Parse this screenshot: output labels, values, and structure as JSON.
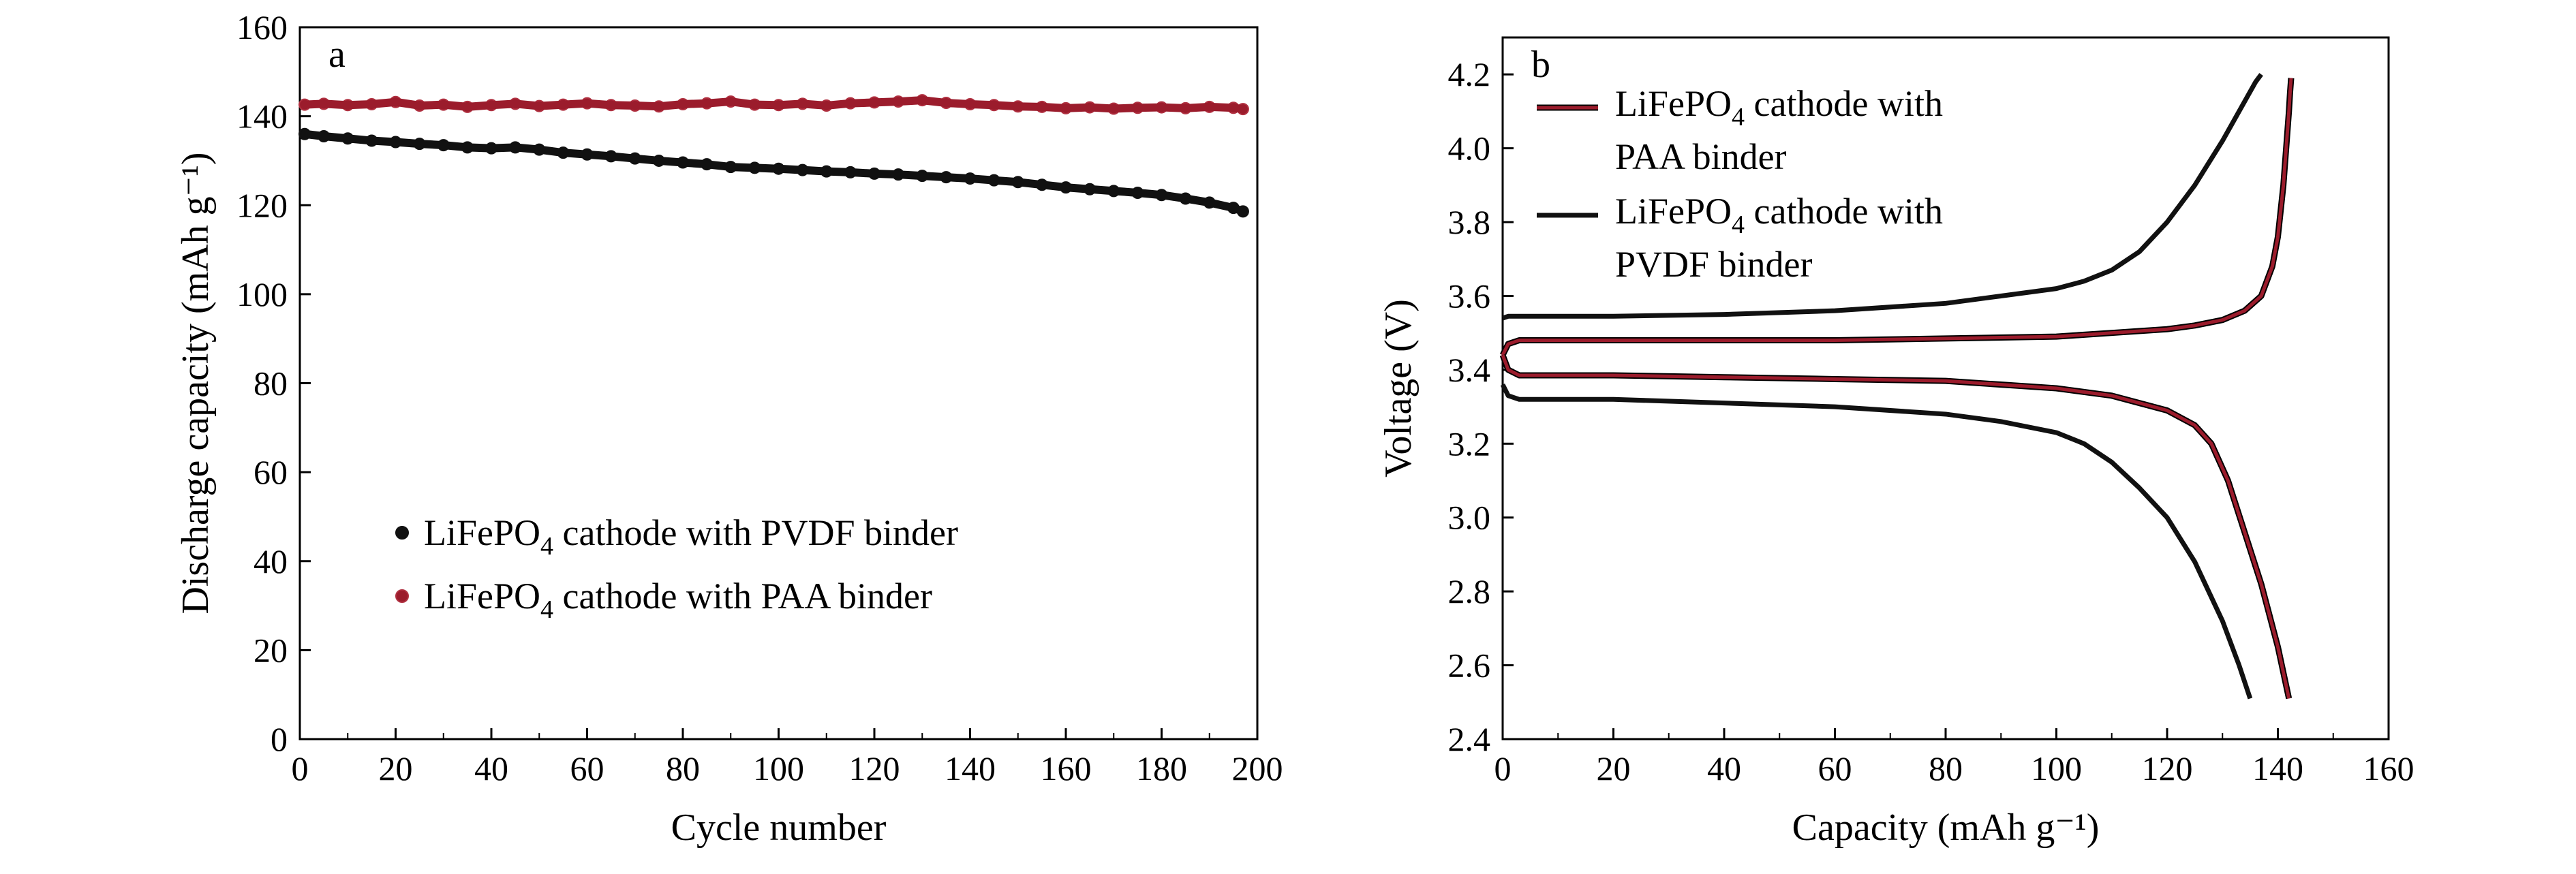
{
  "colors": {
    "pvdf": "#111111",
    "paa": "#9b1c2c",
    "paa_marker_edge": "#b03040"
  },
  "chart_data": [
    {
      "type": "scatter",
      "panel_label": "a",
      "xlabel": "Cycle number",
      "ylabel": "Discharge capacity (mAh g⁻¹)",
      "xlim": [
        0,
        200
      ],
      "ylim": [
        0,
        160
      ],
      "xticks": [
        0,
        20,
        40,
        60,
        80,
        100,
        120,
        140,
        160,
        180,
        200
      ],
      "yticks": [
        0,
        20,
        40,
        60,
        80,
        100,
        120,
        140,
        160
      ],
      "grid": false,
      "legend_position": "lower-left",
      "series": [
        {
          "name": "LiFePO₄ cathode with PVDF binder",
          "name_parts": [
            "LiFePO",
            "4",
            " cathode with PVDF binder"
          ],
          "color_key": "pvdf",
          "x": [
            1,
            5,
            10,
            15,
            20,
            25,
            30,
            35,
            40,
            45,
            50,
            55,
            60,
            65,
            70,
            75,
            80,
            85,
            90,
            95,
            100,
            105,
            110,
            115,
            120,
            125,
            130,
            135,
            140,
            145,
            150,
            155,
            160,
            165,
            170,
            175,
            180,
            185,
            190,
            195,
            197
          ],
          "y": [
            136,
            135.5,
            135,
            134.5,
            134.2,
            133.8,
            133.5,
            133,
            132.8,
            133,
            132.5,
            131.8,
            131.4,
            131,
            130.5,
            130,
            129.6,
            129.2,
            128.6,
            128.4,
            128.2,
            127.9,
            127.6,
            127.4,
            127.1,
            126.9,
            126.6,
            126.3,
            126,
            125.6,
            125.2,
            124.6,
            124,
            123.6,
            123.2,
            122.8,
            122.3,
            121.5,
            120.6,
            119.4,
            118.6
          ]
        },
        {
          "name": "LiFePO₄ cathode with PAA binder",
          "name_parts": [
            "LiFePO",
            "4",
            " cathode with PAA binder"
          ],
          "color_key": "paa",
          "x": [
            1,
            5,
            10,
            15,
            20,
            25,
            30,
            35,
            40,
            45,
            50,
            55,
            60,
            65,
            70,
            75,
            80,
            85,
            90,
            95,
            100,
            105,
            110,
            115,
            120,
            125,
            130,
            135,
            140,
            145,
            150,
            155,
            160,
            165,
            170,
            175,
            180,
            185,
            190,
            195,
            197
          ],
          "y": [
            142.6,
            142.8,
            142.5,
            142.7,
            143.2,
            142.4,
            142.6,
            142.1,
            142.5,
            142.8,
            142.3,
            142.6,
            142.9,
            142.5,
            142.4,
            142.2,
            142.7,
            142.9,
            143.3,
            142.6,
            142.5,
            142.8,
            142.4,
            142.9,
            143.1,
            143.3,
            143.6,
            143.0,
            142.7,
            142.5,
            142.2,
            142.1,
            141.8,
            142.0,
            141.7,
            141.9,
            142.0,
            141.8,
            142.1,
            141.9,
            141.6
          ]
        }
      ]
    },
    {
      "type": "line",
      "panel_label": "b",
      "xlabel": "Capacity (mAh g⁻¹)",
      "ylabel": "Voltage (V)",
      "xlim": [
        0,
        160
      ],
      "ylim": [
        2.4,
        4.3
      ],
      "xticks": [
        0,
        20,
        40,
        60,
        80,
        100,
        120,
        140,
        160
      ],
      "yticks": [
        "2.4",
        "2.6",
        "2.8",
        "3.0",
        "3.2",
        "3.4",
        "3.6",
        "3.8",
        "4.0",
        "4.2"
      ],
      "grid": false,
      "legend_position": "upper-left",
      "series": [
        {
          "name": "LiFePO₄ cathode with PAA binder",
          "legend_lines": [
            [
              "LiFePO",
              "4",
              " cathode with"
            ],
            [
              "PAA binder",
              "",
              ""
            ]
          ],
          "color_key": "paa",
          "curves": [
            {
              "label": "charge",
              "x": [
                0,
                1,
                3,
                10,
                20,
                40,
                60,
                80,
                100,
                110,
                120,
                125,
                130,
                134,
                137,
                139,
                140,
                141,
                141.5,
                142,
                142.2,
                142.4
              ],
              "y": [
                3.44,
                3.47,
                3.48,
                3.48,
                3.48,
                3.48,
                3.48,
                3.485,
                3.49,
                3.5,
                3.51,
                3.52,
                3.535,
                3.56,
                3.6,
                3.68,
                3.76,
                3.9,
                4.0,
                4.1,
                4.15,
                4.19
              ]
            },
            {
              "label": "discharge",
              "x": [
                0,
                1,
                3,
                10,
                20,
                40,
                60,
                80,
                100,
                110,
                120,
                125,
                128,
                131,
                134,
                137,
                140,
                142
              ],
              "y": [
                3.44,
                3.4,
                3.385,
                3.385,
                3.385,
                3.38,
                3.375,
                3.37,
                3.35,
                3.33,
                3.29,
                3.25,
                3.2,
                3.1,
                2.96,
                2.82,
                2.65,
                2.51
              ]
            }
          ]
        },
        {
          "name": "LiFePO₄ cathode with PVDF binder",
          "legend_lines": [
            [
              "LiFePO",
              "4",
              " cathode with"
            ],
            [
              "PVDF binder",
              "",
              ""
            ]
          ],
          "color_key": "pvdf",
          "curves": [
            {
              "label": "charge",
              "x": [
                0,
                1,
                3,
                10,
                20,
                40,
                60,
                80,
                90,
                100,
                105,
                110,
                115,
                120,
                125,
                130,
                133,
                136,
                137
              ],
              "y": [
                3.54,
                3.545,
                3.545,
                3.545,
                3.545,
                3.55,
                3.56,
                3.58,
                3.6,
                3.62,
                3.64,
                3.67,
                3.72,
                3.8,
                3.9,
                4.02,
                4.1,
                4.18,
                4.2
              ]
            },
            {
              "label": "discharge",
              "x": [
                0,
                1,
                3,
                10,
                20,
                40,
                60,
                80,
                90,
                100,
                105,
                110,
                115,
                120,
                125,
                130,
                133,
                135
              ],
              "y": [
                3.36,
                3.33,
                3.32,
                3.32,
                3.32,
                3.31,
                3.3,
                3.28,
                3.26,
                3.23,
                3.2,
                3.15,
                3.08,
                3.0,
                2.88,
                2.72,
                2.6,
                2.51
              ]
            }
          ]
        }
      ]
    }
  ]
}
